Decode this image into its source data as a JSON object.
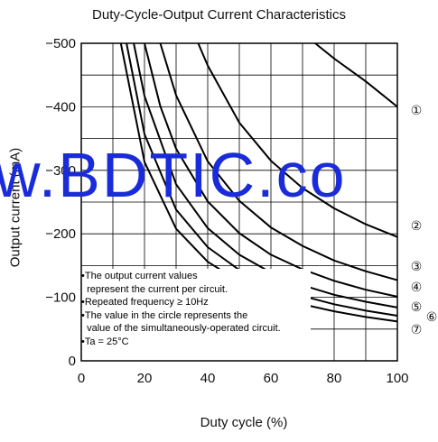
{
  "chart_data": {
    "type": "line",
    "title": "Duty-Cycle-Output Current Characteristics",
    "xlabel": "Duty cycle (%)",
    "ylabel": "Output current (mA)",
    "xlim": [
      0,
      100
    ],
    "ylim": [
      0,
      -500
    ],
    "x_ticks": [
      "0",
      "20",
      "40",
      "60",
      "80",
      "100"
    ],
    "y_ticks": [
      "0",
      "−100",
      "−200",
      "−300",
      "−400",
      "−500"
    ],
    "grid": true,
    "series": [
      {
        "name": "①",
        "points": [
          [
            74,
            -500
          ],
          [
            80,
            -476
          ],
          [
            90,
            -440
          ],
          [
            100,
            -400
          ]
        ]
      },
      {
        "name": "②",
        "points": [
          [
            37,
            -500
          ],
          [
            40,
            -465
          ],
          [
            50,
            -375
          ],
          [
            60,
            -315
          ],
          [
            70,
            -272
          ],
          [
            80,
            -240
          ],
          [
            90,
            -215
          ],
          [
            100,
            -195
          ]
        ]
      },
      {
        "name": "③",
        "points": [
          [
            25,
            -500
          ],
          [
            30,
            -418
          ],
          [
            40,
            -314
          ],
          [
            50,
            -252
          ],
          [
            60,
            -210
          ],
          [
            70,
            -181
          ],
          [
            80,
            -158
          ],
          [
            90,
            -141
          ],
          [
            100,
            -127
          ]
        ]
      },
      {
        "name": "④",
        "points": [
          [
            20,
            -500
          ],
          [
            25,
            -401
          ],
          [
            30,
            -334
          ],
          [
            40,
            -251
          ],
          [
            50,
            -201
          ],
          [
            60,
            -167
          ],
          [
            70,
            -144
          ],
          [
            80,
            -126
          ],
          [
            90,
            -112
          ],
          [
            100,
            -101
          ]
        ]
      },
      {
        "name": "⑤",
        "points": [
          [
            16.6,
            -500
          ],
          [
            20,
            -417
          ],
          [
            30,
            -278
          ],
          [
            40,
            -209
          ],
          [
            50,
            -167
          ],
          [
            60,
            -139
          ],
          [
            70,
            -119
          ],
          [
            80,
            -104
          ],
          [
            90,
            -93
          ],
          [
            100,
            -84
          ]
        ]
      },
      {
        "name": "⑥",
        "points": [
          [
            14.3,
            -500
          ],
          [
            20,
            -357
          ],
          [
            30,
            -238
          ],
          [
            40,
            -179
          ],
          [
            50,
            -143
          ],
          [
            60,
            -119
          ],
          [
            70,
            -102
          ],
          [
            80,
            -89
          ],
          [
            90,
            -79
          ],
          [
            100,
            -71
          ]
        ]
      },
      {
        "name": "⑦",
        "points": [
          [
            12.5,
            -500
          ],
          [
            20,
            -313
          ],
          [
            30,
            -208
          ],
          [
            40,
            -156
          ],
          [
            50,
            -125
          ],
          [
            60,
            -104
          ],
          [
            70,
            -89
          ],
          [
            80,
            -78
          ],
          [
            90,
            -69
          ],
          [
            100,
            -62
          ]
        ]
      }
    ]
  },
  "notes": [
    "•The output current values",
    "  represent the current per circuit.",
    "•Repeated frequency ≥ 10Hz",
    "•The value in the circle represents the",
    "  value of the simultaneously-operated circuit.",
    "•Ta = 25°C"
  ],
  "watermark": "w.BDTIC.co"
}
